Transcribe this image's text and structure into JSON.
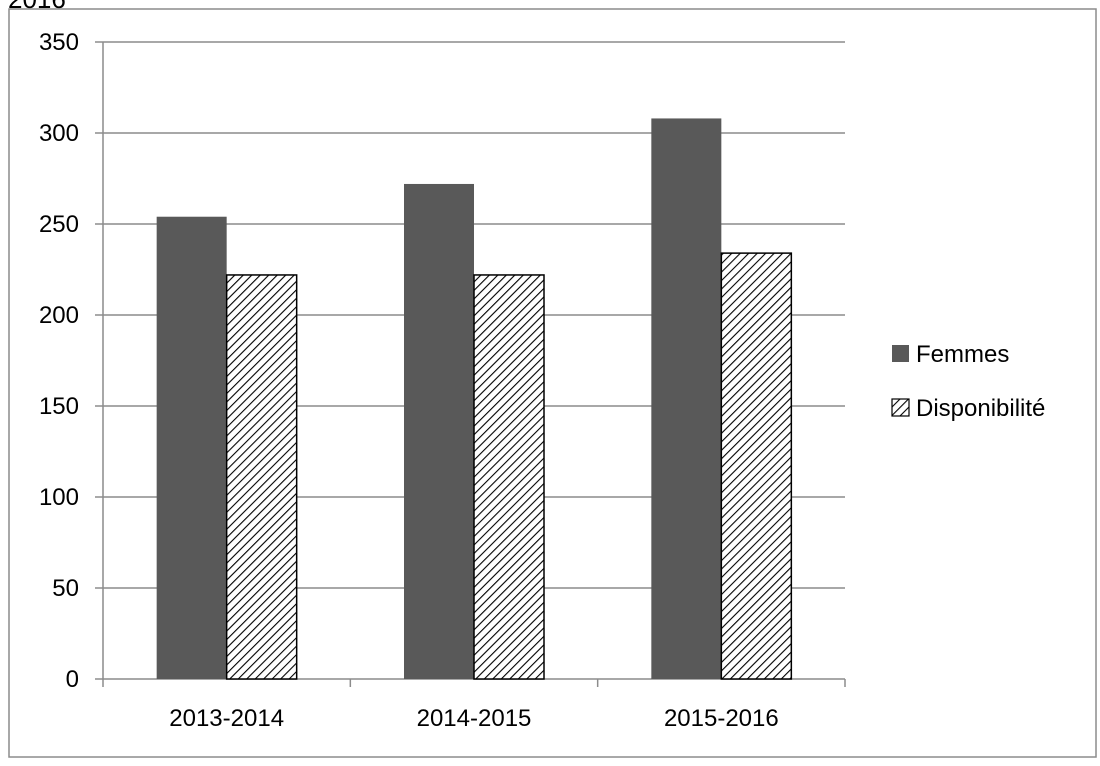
{
  "chart_data": {
    "type": "bar",
    "title": "",
    "xlabel": "",
    "ylabel": "",
    "categories": [
      "2013-2014",
      "2014-2015",
      "2015-2016"
    ],
    "series": [
      {
        "name": "Femmes",
        "values": [
          254,
          272,
          308
        ],
        "color": "#595959",
        "pattern": "solid"
      },
      {
        "name": "Disponibilité",
        "values": [
          222,
          222,
          234
        ],
        "color": "#ffffff",
        "pattern": "diagonal-hatch"
      }
    ],
    "ylim": [
      0,
      350
    ],
    "yticks": [
      0,
      50,
      100,
      150,
      200,
      250,
      300,
      350
    ],
    "grid": true,
    "legend_position": "right",
    "top_left_clipped_text": "2016"
  }
}
